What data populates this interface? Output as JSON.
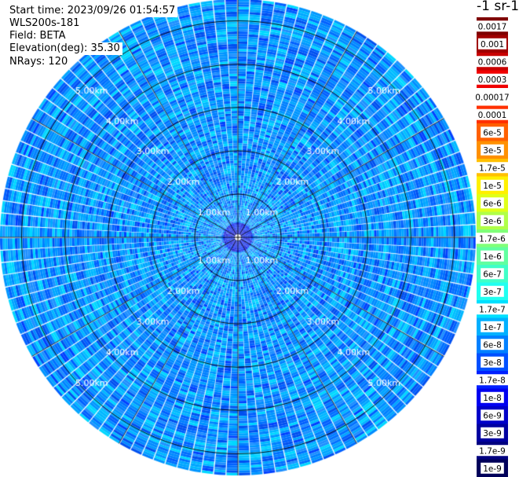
{
  "header": {
    "start_time": "Start time: 2023/09/26 01:54:57",
    "instrument": "WLS200s-181",
    "field": "Field: BETA",
    "elevation": "Elevation(deg): 35.30",
    "nrays": "NRays: 120"
  },
  "colorbar": {
    "title": "-1 sr-1",
    "labels": [
      "0.0017",
      "0.001",
      "0.0006",
      "0.0003",
      "0.00017",
      "0.0001",
      "6e-5",
      "3e-5",
      "1.7e-5",
      "1e-5",
      "6e-6",
      "3e-6",
      "1.7e-6",
      "1e-6",
      "6e-7",
      "3e-7",
      "1.7e-7",
      "1e-7",
      "6e-8",
      "3e-8",
      "1.7e-8",
      "1e-8",
      "6e-9",
      "3e-9",
      "1.7e-9",
      "1e-9"
    ],
    "colors": [
      "#7f0000",
      "#a00000",
      "#c80000",
      "#f00000",
      "#ffffff",
      "#ff3000",
      "#ff6000",
      "#ff9000",
      "#ffc000",
      "#fff000",
      "#e0ff18",
      "#b0ff48",
      "#80ff78",
      "#60ffa0",
      "#40ffc8",
      "#20fff0",
      "#00e0ff",
      "#00b0ff",
      "#0080ff",
      "#0050ff",
      "#0020ff",
      "#0000f0",
      "#0000c8",
      "#0000a0",
      "#000080",
      "#00005a"
    ]
  },
  "chart_data": {
    "type": "heatmap",
    "projection": "polar (PPI scan)",
    "title": "",
    "field": "BETA",
    "elevation_deg": 35.3,
    "n_rays": 120,
    "range_rings_km": [
      1,
      2,
      3,
      4,
      5
    ],
    "range_ring_labels": [
      "1.00km",
      "2.00km",
      "3.00km",
      "4.00km",
      "5.00km"
    ],
    "max_range_km": 5.5,
    "dominant_value_range": [
      1e-08,
      1e-07
    ],
    "near_center_value_range": [
      1e-09,
      1e-08
    ],
    "grid": true
  }
}
